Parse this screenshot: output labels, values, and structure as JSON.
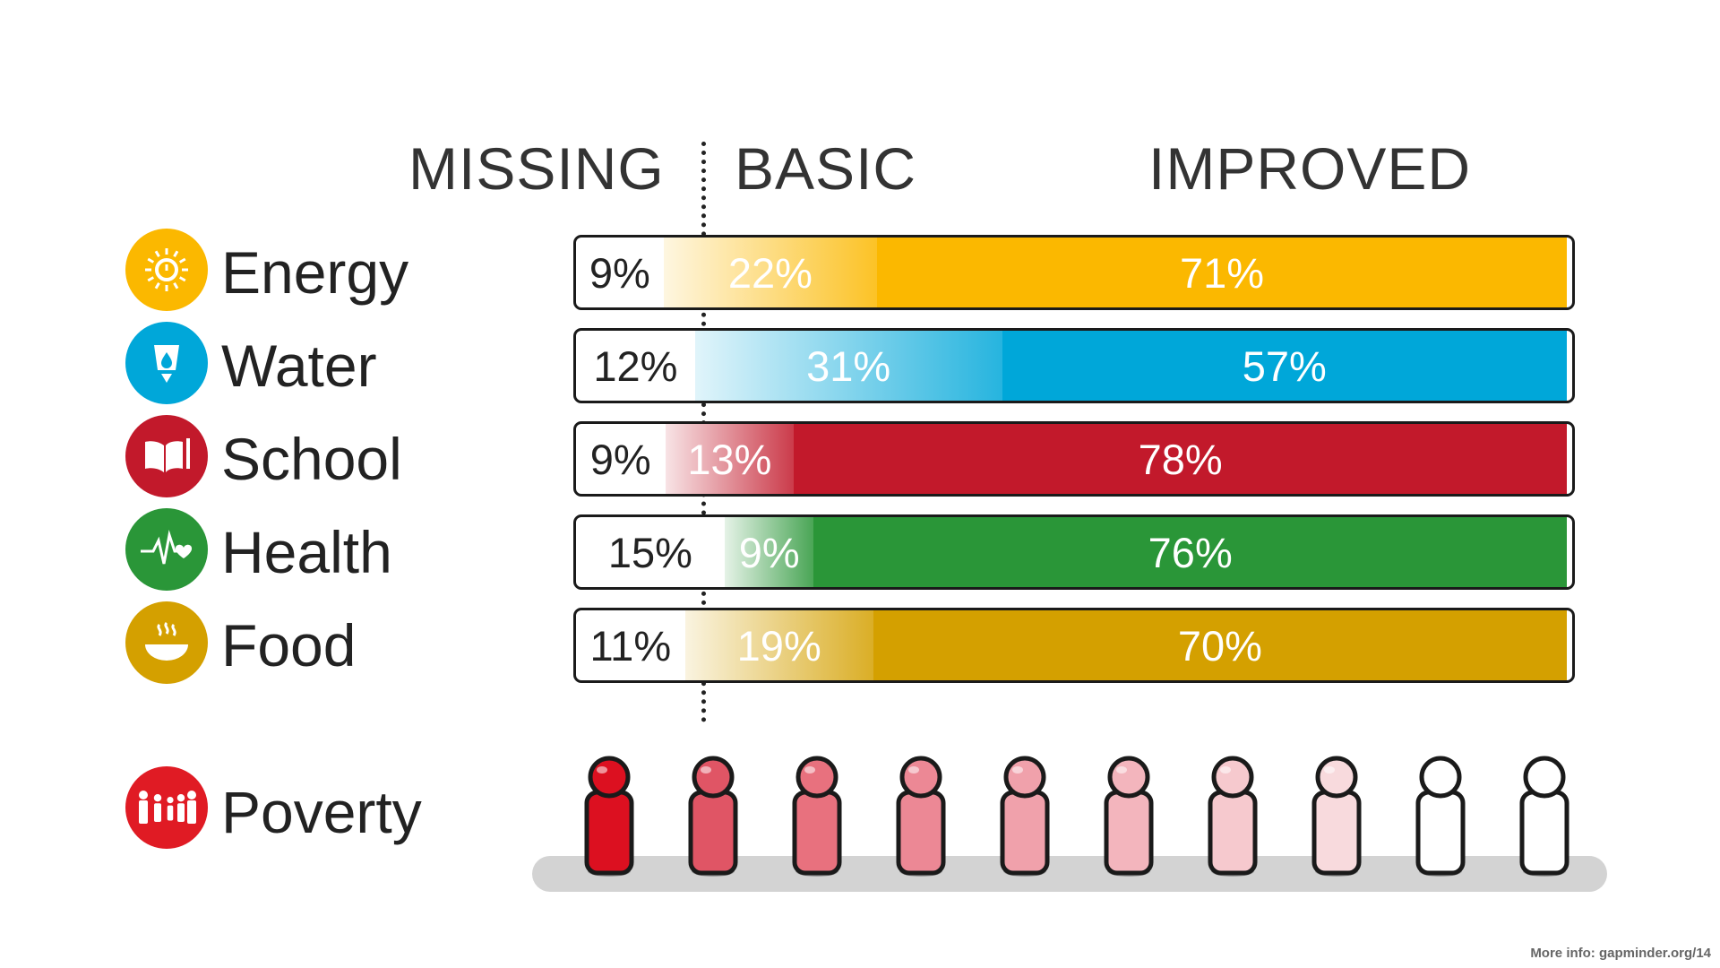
{
  "headers": {
    "missing": "MISSING",
    "basic": "BASIC",
    "improved": "IMPROVED"
  },
  "chart_data": {
    "type": "bar",
    "stacked": true,
    "orientation": "horizontal",
    "categories": [
      "Energy",
      "Water",
      "School",
      "Health",
      "Food"
    ],
    "series": [
      {
        "name": "MISSING",
        "values": [
          9,
          12,
          9,
          15,
          11
        ]
      },
      {
        "name": "BASIC",
        "values": [
          22,
          31,
          13,
          9,
          19
        ]
      },
      {
        "name": "IMPROVED",
        "values": [
          71,
          57,
          78,
          76,
          70
        ]
      }
    ],
    "colors": {
      "Energy": "#fbb800",
      "Water": "#00a7d9",
      "School": "#c2192b",
      "Health": "#2a9638",
      "Food": "#d4a000"
    },
    "value_format": "{v}%"
  },
  "rows": [
    {
      "label": "Energy",
      "icon": "energy-icon",
      "color": "#fbb800"
    },
    {
      "label": "Water",
      "icon": "water-icon",
      "color": "#00a7d9"
    },
    {
      "label": "School",
      "icon": "school-icon",
      "color": "#c2192b"
    },
    {
      "label": "Health",
      "icon": "health-icon",
      "color": "#2a9638"
    },
    {
      "label": "Food",
      "icon": "food-icon",
      "color": "#d4a000"
    }
  ],
  "poverty": {
    "label": "Poverty",
    "icon": "family-icon",
    "color": "#e01b24",
    "figure_colors": [
      "#dc1020",
      "#e05565",
      "#e8717e",
      "#ec8895",
      "#f0a1ab",
      "#f3b5bd",
      "#f6c9ce",
      "#f8dadd",
      "#ffffff",
      "#ffffff"
    ]
  },
  "footer": "More info: gapminder.org/14"
}
